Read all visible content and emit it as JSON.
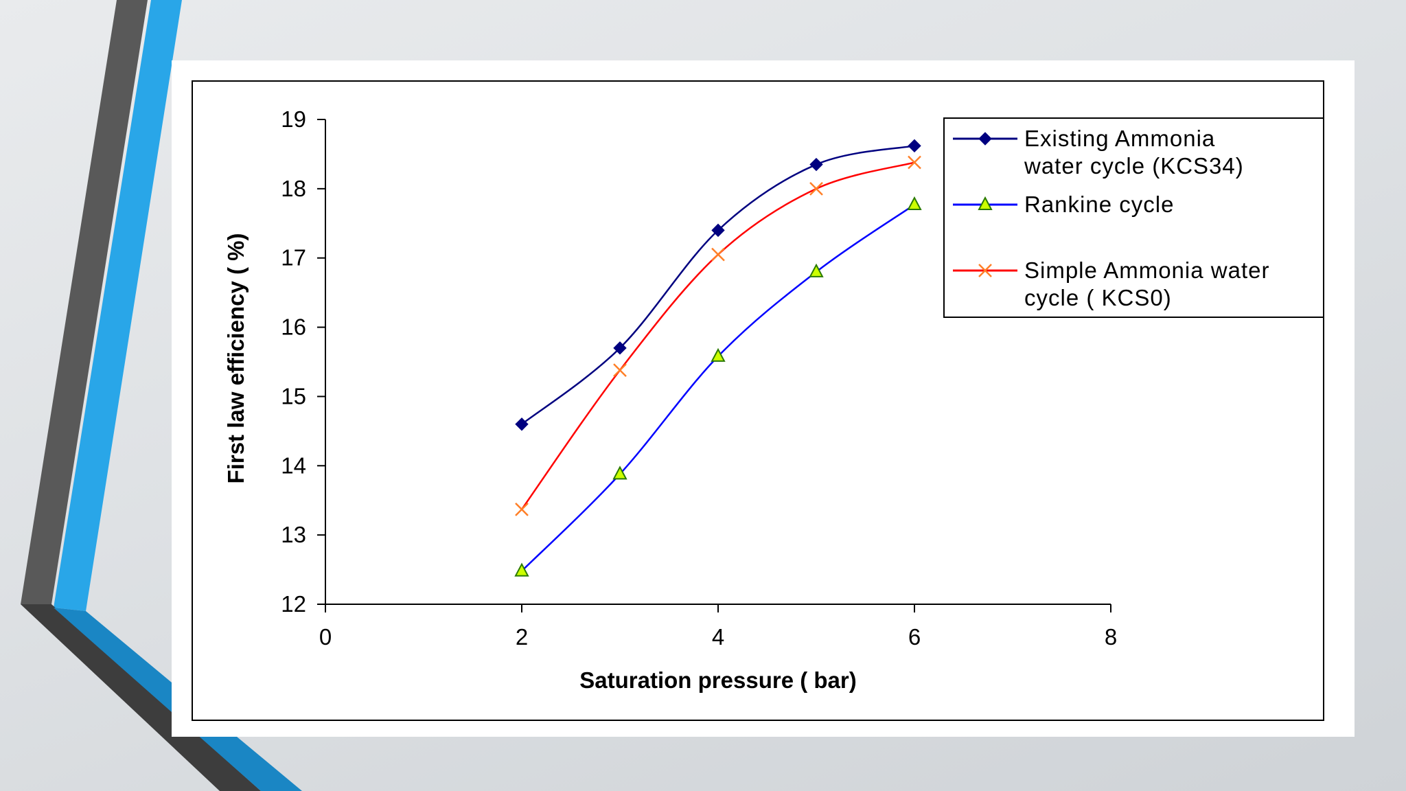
{
  "chart_data": {
    "type": "line",
    "xlabel": "Saturation pressure ( bar)",
    "ylabel": "First law efficiency ( %)",
    "xlim": [
      0,
      8
    ],
    "ylim": [
      12,
      19
    ],
    "xticks": [
      "0",
      "2",
      "4",
      "6",
      "8"
    ],
    "yticks": [
      "12",
      "13",
      "14",
      "15",
      "16",
      "17",
      "18",
      "19"
    ],
    "grid": false,
    "legend_position": "top-right",
    "x": [
      2,
      3,
      4,
      5,
      6
    ],
    "series": [
      {
        "name_lines": [
          "Existing Ammonia",
          "water cycle (KCS34)"
        ],
        "values": [
          14.6,
          15.7,
          17.4,
          18.35,
          18.62
        ],
        "color": "#000080",
        "marker": "diamond"
      },
      {
        "name_lines": [
          "Rankine cycle"
        ],
        "values": [
          12.48,
          13.88,
          15.58,
          16.8,
          17.77
        ],
        "color": "#0000ff",
        "marker": "triangle",
        "marker_fill": "#ccff00"
      },
      {
        "name_lines": [
          "Simple Ammonia water",
          "cycle ( KCS0)"
        ],
        "values": [
          13.37,
          15.38,
          17.05,
          18.0,
          18.38
        ],
        "color": "#ff0000",
        "marker": "x",
        "marker_color": "#ff7f27"
      }
    ]
  }
}
